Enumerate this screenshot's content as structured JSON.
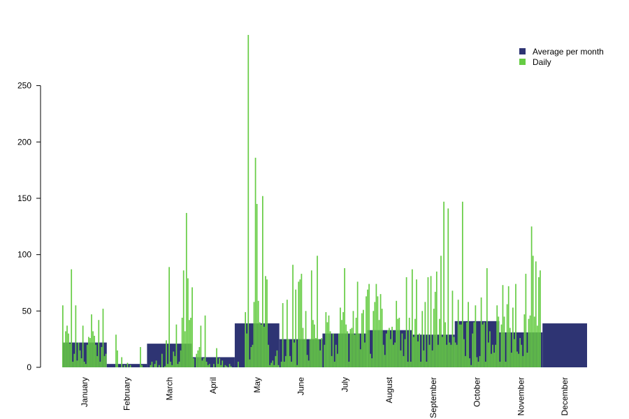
{
  "chart_data": {
    "type": "bar",
    "title": "",
    "xlabel": "",
    "ylabel": "",
    "ylim": [
      0,
      295
    ],
    "yticks": [
      0,
      50,
      100,
      150,
      200,
      250
    ],
    "grid": false,
    "legend_position": "top-right",
    "months": [
      "January",
      "February",
      "March",
      "April",
      "May",
      "June",
      "July",
      "August",
      "September",
      "October",
      "November",
      "December"
    ],
    "month_days": [
      31,
      28,
      31,
      30,
      31,
      30,
      31,
      31,
      30,
      31,
      30,
      31
    ],
    "series": [
      {
        "name": "Average per month",
        "color": "#2e3473",
        "values": [
          22,
          3,
          21,
          9,
          39,
          25,
          30,
          33,
          29,
          41,
          31,
          39
        ]
      },
      {
        "name": "Daily",
        "color": "#66cc44",
        "values": [
          55,
          22,
          32,
          37,
          30,
          21,
          87,
          5,
          12,
          55,
          6,
          22,
          15,
          8,
          37,
          5,
          3,
          20,
          27,
          26,
          47,
          32,
          28,
          20,
          10,
          42,
          5,
          18,
          52,
          10,
          12,
          0,
          0,
          0,
          0,
          0,
          0,
          29,
          15,
          0,
          0,
          9,
          0,
          2,
          0,
          4,
          0,
          2,
          0,
          0,
          0,
          0,
          0,
          0,
          18,
          2,
          0,
          0,
          0,
          0,
          0,
          2,
          5,
          0,
          3,
          6,
          0,
          2,
          0,
          12,
          0,
          1,
          24,
          3,
          89,
          5,
          2,
          14,
          10,
          38,
          3,
          5,
          15,
          44,
          86,
          32,
          137,
          79,
          42,
          44,
          71,
          8,
          0,
          12,
          15,
          18,
          37,
          6,
          8,
          46,
          5,
          2,
          3,
          0,
          0,
          3,
          0,
          17,
          3,
          8,
          2,
          6,
          0,
          2,
          1,
          0,
          3,
          1,
          0,
          0,
          0,
          0,
          5,
          0,
          0,
          0,
          0,
          49,
          30,
          295,
          7,
          18,
          20,
          58,
          186,
          145,
          59,
          40,
          38,
          152,
          36,
          81,
          78,
          20,
          2,
          4,
          6,
          2,
          10,
          15,
          2,
          0,
          5,
          57,
          5,
          10,
          60,
          25,
          10,
          5,
          91,
          22,
          69,
          2,
          76,
          78,
          83,
          35,
          25,
          50,
          11,
          6,
          25,
          86,
          42,
          38,
          26,
          99,
          25,
          15,
          26,
          0,
          20,
          49,
          40,
          46,
          32,
          10,
          30,
          5,
          20,
          12,
          30,
          53,
          42,
          49,
          88,
          38,
          32,
          5,
          34,
          35,
          50,
          29,
          44,
          76,
          30,
          16,
          48,
          51,
          22,
          63,
          69,
          74,
          12,
          8,
          50,
          58,
          74,
          63,
          42,
          65,
          52,
          20,
          11,
          30,
          33,
          35,
          25,
          36,
          20,
          22,
          59,
          43,
          44,
          15,
          30,
          10,
          25,
          80,
          5,
          44,
          5,
          87,
          27,
          43,
          78,
          23,
          30,
          5,
          50,
          15,
          58,
          5,
          80,
          20,
          81,
          15,
          52,
          67,
          85,
          20,
          43,
          99,
          27,
          147,
          40,
          20,
          141,
          22,
          20,
          68,
          27,
          22,
          20,
          60,
          38,
          38,
          147,
          25,
          10,
          40,
          58,
          8,
          2,
          30,
          40,
          55,
          9,
          5,
          10,
          62,
          38,
          40,
          5,
          88,
          22,
          32,
          12,
          20,
          13,
          20,
          55,
          45,
          5,
          38,
          73,
          45,
          5,
          56,
          72,
          35,
          13,
          53,
          25,
          74,
          14,
          12,
          26,
          20,
          10,
          47,
          83,
          13,
          43,
          46,
          125,
          99,
          45,
          94,
          37,
          80,
          86
        ]
      }
    ]
  }
}
